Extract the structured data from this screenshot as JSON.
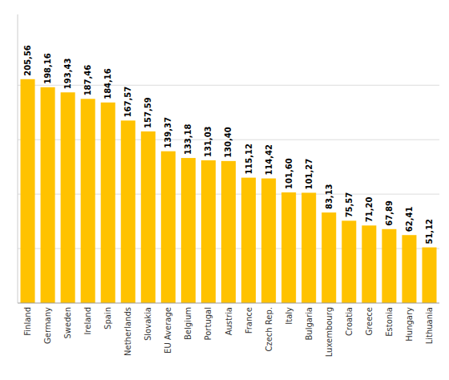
{
  "chart_data": {
    "type": "bar",
    "categories": [
      "Finland",
      "Germany",
      "Sweden",
      "Ireland",
      "Spain",
      "Netherlands",
      "Slovakia",
      "EU Average",
      "Belgium",
      "Portugal",
      "Austria",
      "France",
      "Czech Rep.",
      "Italy",
      "Bulgaria",
      "Luxembourg",
      "Croatia",
      "Greece",
      "Estonia",
      "Hungary",
      "Lithuania"
    ],
    "values": [
      205.56,
      198.16,
      193.43,
      187.46,
      184.16,
      167.57,
      157.59,
      139.37,
      133.18,
      131.03,
      130.4,
      115.12,
      114.42,
      101.6,
      101.27,
      83.13,
      75.57,
      71.2,
      67.89,
      62.41,
      51.12
    ],
    "value_labels": [
      "205,56",
      "198,16",
      "193,43",
      "187,46",
      "184,16",
      "167,57",
      "157,59",
      "139,37",
      "133,18",
      "131,03",
      "130,40",
      "115,12",
      "114,42",
      "101,60",
      "101,27",
      "83,13",
      "75,57",
      "71,20",
      "67,89",
      "62,41",
      "51,12"
    ],
    "color": "#FFC200",
    "ylim": [
      0,
      265
    ],
    "yticks": [
      50,
      100,
      150,
      200
    ],
    "grid": true,
    "data_labels": true,
    "tick_labels": "x"
  }
}
